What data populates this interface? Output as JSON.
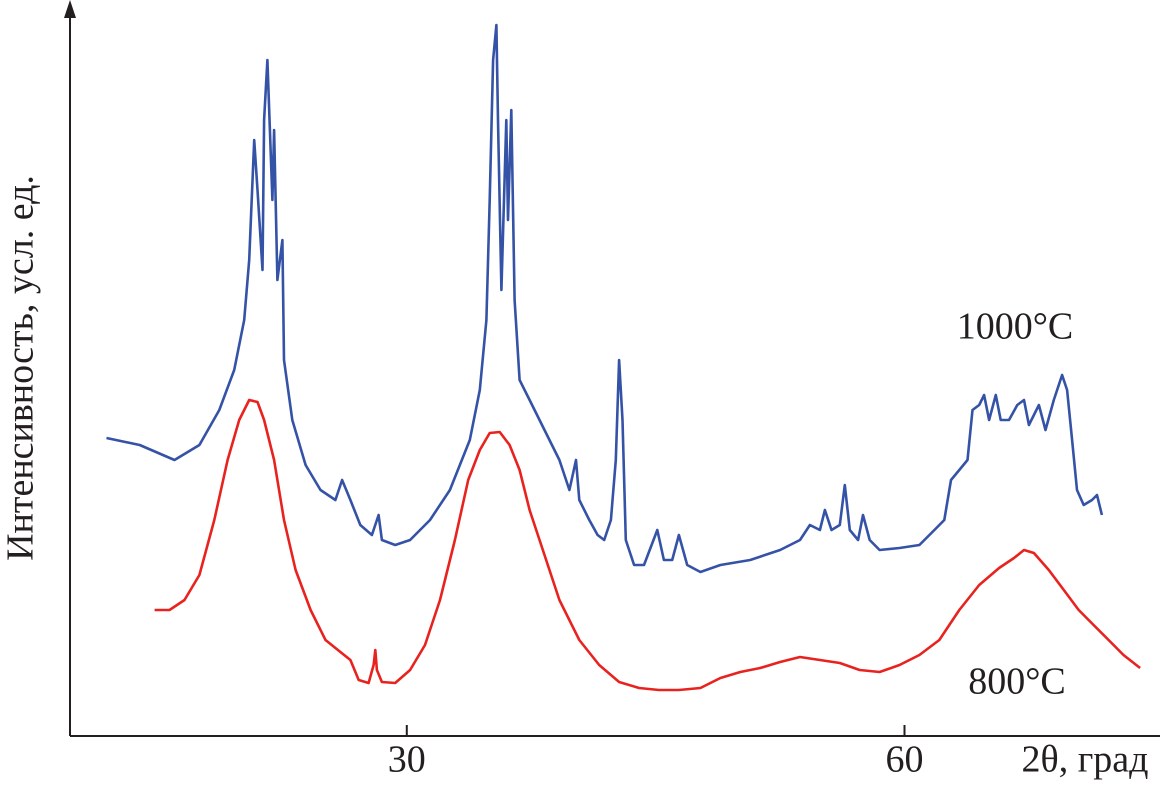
{
  "chart_data": {
    "type": "line",
    "x_label": "2θ, град",
    "y_label": "Интенсивность, усл. ед.",
    "xlim": [
      9.7,
      75.4
    ],
    "ylim": [
      0,
      730
    ],
    "xticks": [
      30,
      60
    ],
    "series": [
      {
        "name": "1000°C",
        "color": "#3553a6",
        "x": [
          11.9,
          13.9,
          16.0,
          17.5,
          18.7,
          19.6,
          20.2,
          20.5,
          20.8,
          21.0,
          21.3,
          21.4,
          21.6,
          21.9,
          22.0,
          22.2,
          22.5,
          22.6,
          23.1,
          23.9,
          24.8,
          25.7,
          26.1,
          26.6,
          27.2,
          27.9,
          28.3,
          28.5,
          29.3,
          30.2,
          31.4,
          32.6,
          33.8,
          34.4,
          34.8,
          35.0,
          35.2,
          35.4,
          35.5,
          35.7,
          36.0,
          36.1,
          36.3,
          36.5,
          36.8,
          37.4,
          38.3,
          39.2,
          39.8,
          40.2,
          40.4,
          41.0,
          41.5,
          41.9,
          42.3,
          42.6,
          42.8,
          43.0,
          43.2,
          43.7,
          44.3,
          45.1,
          45.5,
          46.0,
          46.4,
          46.9,
          47.7,
          48.9,
          50.7,
          52.5,
          53.7,
          54.3,
          54.9,
          55.2,
          55.6,
          56.1,
          56.4,
          56.7,
          57.2,
          57.5,
          57.9,
          58.5,
          59.7,
          60.9,
          61.8,
          62.4,
          62.8,
          63.3,
          63.8,
          64.1,
          64.5,
          64.8,
          65.1,
          65.5,
          65.8,
          66.3,
          66.8,
          67.2,
          67.5,
          68.1,
          68.5,
          69.0,
          69.5,
          69.8,
          70.1,
          70.4,
          70.8,
          71.3,
          71.6,
          71.9
        ],
        "values": [
          297,
          290,
          275,
          290,
          325,
          365,
          415,
          475,
          595,
          545,
          465,
          615,
          675,
          535,
          605,
          455,
          495,
          375,
          315,
          270,
          245,
          235,
          255,
          235,
          210,
          200,
          220,
          195,
          190,
          195,
          215,
          245,
          295,
          345,
          415,
          535,
          675,
          710,
          615,
          445,
          615,
          515,
          625,
          435,
          355,
          335,
          305,
          275,
          245,
          275,
          235,
          215,
          200,
          195,
          215,
          275,
          375,
          315,
          195,
          170,
          170,
          205,
          175,
          175,
          200,
          170,
          163,
          170,
          175,
          185,
          195,
          210,
          205,
          225,
          205,
          210,
          250,
          205,
          195,
          220,
          195,
          185,
          187,
          190,
          205,
          215,
          255,
          265,
          275,
          325,
          330,
          340,
          315,
          340,
          315,
          315,
          330,
          335,
          310,
          330,
          305,
          335,
          360,
          345,
          295,
          245,
          230,
          235,
          240,
          220
        ]
      },
      {
        "name": "800°C",
        "color": "#e8231f",
        "x": [
          14.8,
          15.7,
          16.6,
          17.5,
          18.4,
          19.2,
          19.9,
          20.5,
          21.0,
          21.4,
          22.0,
          22.6,
          23.3,
          24.2,
          25.1,
          26.0,
          26.6,
          27.1,
          27.7,
          28.0,
          28.1,
          28.2,
          28.5,
          29.3,
          30.2,
          31.1,
          32.0,
          32.9,
          33.7,
          34.4,
          35.0,
          35.6,
          36.2,
          36.8,
          37.4,
          38.3,
          39.2,
          40.4,
          41.6,
          42.8,
          44.0,
          45.2,
          46.4,
          47.7,
          48.9,
          50.1,
          51.3,
          52.5,
          53.7,
          54.9,
          56.1,
          57.3,
          58.5,
          59.7,
          60.9,
          62.1,
          63.3,
          64.5,
          65.7,
          66.6,
          67.2,
          67.8,
          68.7,
          69.6,
          70.5,
          71.4,
          72.3,
          73.2,
          74.2
        ],
        "values": [
          125,
          125,
          135,
          160,
          215,
          275,
          315,
          335,
          333,
          315,
          275,
          215,
          165,
          125,
          95,
          83,
          75,
          55,
          52,
          70,
          85,
          65,
          53,
          52,
          65,
          90,
          135,
          195,
          255,
          285,
          302,
          303,
          290,
          265,
          225,
          180,
          135,
          95,
          70,
          53,
          47,
          45,
          45,
          47,
          57,
          63,
          67,
          73,
          78,
          75,
          72,
          65,
          63,
          70,
          80,
          95,
          125,
          150,
          167,
          177,
          185,
          182,
          165,
          145,
          125,
          110,
          95,
          80,
          67
        ]
      }
    ]
  }
}
